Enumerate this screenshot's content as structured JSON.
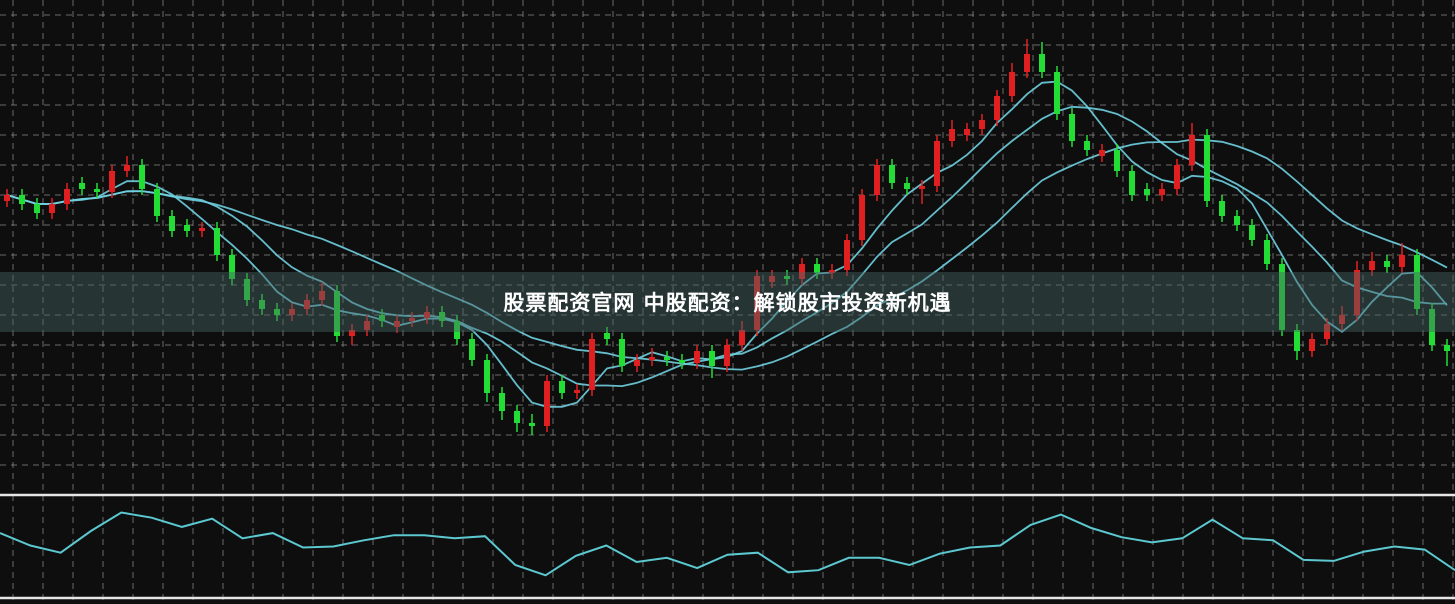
{
  "banner": {
    "title": "股票配资官网 中股配资：解锁股市投资新机遇"
  },
  "colors": {
    "background": "#0e0e0e",
    "up": "#e02020",
    "down": "#22dd33",
    "ma_line": "#6fd0e0",
    "grid": "#8a8a8a",
    "separator": "#e6e6e6",
    "oscillator": "#5cc8d0"
  },
  "chart_data": [
    {
      "type": "candlestick",
      "title": "",
      "xlabel": "",
      "ylabel": "",
      "grid": true,
      "ylim": [
        0,
        160
      ],
      "moving_averages": [
        5,
        10,
        20
      ],
      "ohlc": [
        [
          93,
          97,
          91,
          95
        ],
        [
          95,
          97,
          90,
          92
        ],
        [
          92,
          94,
          87,
          89
        ],
        [
          89,
          94,
          87,
          92
        ],
        [
          92,
          99,
          90,
          97
        ],
        [
          99,
          101,
          95,
          97
        ],
        [
          97,
          99,
          94,
          96
        ],
        [
          96,
          105,
          94,
          103
        ],
        [
          103,
          108,
          101,
          105
        ],
        [
          105,
          107,
          95,
          97
        ],
        [
          97,
          99,
          86,
          88
        ],
        [
          88,
          90,
          81,
          83
        ],
        [
          85,
          87,
          81,
          83
        ],
        [
          83,
          86,
          81,
          84
        ],
        [
          84,
          86,
          73,
          75
        ],
        [
          75,
          77,
          65,
          67
        ],
        [
          67,
          69,
          58,
          60
        ],
        [
          60,
          62,
          55,
          57
        ],
        [
          57,
          59,
          53,
          55
        ],
        [
          55,
          59,
          53,
          57
        ],
        [
          57,
          62,
          55,
          60
        ],
        [
          60,
          66,
          58,
          63
        ],
        [
          63,
          65,
          46,
          48
        ],
        [
          48,
          52,
          45,
          50
        ],
        [
          50,
          55,
          48,
          53
        ],
        [
          55,
          57,
          51,
          53
        ],
        [
          51,
          55,
          49,
          53
        ],
        [
          53,
          56,
          51,
          54
        ],
        [
          54,
          58,
          52,
          56
        ],
        [
          56,
          58,
          51,
          53
        ],
        [
          53,
          55,
          45,
          47
        ],
        [
          47,
          49,
          38,
          40
        ],
        [
          40,
          42,
          26,
          29
        ],
        [
          29,
          31,
          20,
          23
        ],
        [
          23,
          25,
          16,
          19
        ],
        [
          19,
          22,
          15,
          18
        ],
        [
          18,
          35,
          16,
          33
        ],
        [
          33,
          35,
          27,
          29
        ],
        [
          29,
          32,
          27,
          30
        ],
        [
          30,
          49,
          28,
          47
        ],
        [
          49,
          51,
          45,
          47
        ],
        [
          47,
          49,
          36,
          38
        ],
        [
          38,
          42,
          36,
          40
        ],
        [
          40,
          44,
          38,
          41
        ],
        [
          41,
          43,
          38,
          40
        ],
        [
          40,
          42,
          37,
          39
        ],
        [
          39,
          45,
          37,
          43
        ],
        [
          43,
          45,
          34,
          38
        ],
        [
          38,
          47,
          36,
          45
        ],
        [
          45,
          53,
          43,
          50
        ],
        [
          50,
          70,
          48,
          68
        ],
        [
          66,
          70,
          64,
          68
        ],
        [
          68,
          70,
          65,
          67
        ],
        [
          67,
          74,
          65,
          72
        ],
        [
          72,
          74,
          67,
          69
        ],
        [
          69,
          72,
          67,
          70
        ],
        [
          70,
          82,
          68,
          80
        ],
        [
          80,
          97,
          78,
          95
        ],
        [
          95,
          107,
          93,
          105
        ],
        [
          105,
          107,
          97,
          99
        ],
        [
          99,
          101,
          95,
          97
        ],
        [
          97,
          100,
          92,
          98
        ],
        [
          98,
          115,
          96,
          113
        ],
        [
          113,
          120,
          111,
          117
        ],
        [
          115,
          119,
          113,
          117
        ],
        [
          117,
          122,
          115,
          120
        ],
        [
          120,
          130,
          118,
          128
        ],
        [
          128,
          139,
          126,
          136
        ],
        [
          136,
          147,
          134,
          142
        ],
        [
          142,
          146,
          134,
          136
        ],
        [
          136,
          138,
          120,
          122
        ],
        [
          122,
          124,
          111,
          113
        ],
        [
          113,
          115,
          108,
          110
        ],
        [
          108,
          112,
          106,
          110
        ],
        [
          110,
          112,
          101,
          103
        ],
        [
          103,
          105,
          93,
          95
        ],
        [
          97,
          99,
          93,
          95
        ],
        [
          95,
          99,
          93,
          97
        ],
        [
          97,
          107,
          95,
          105
        ],
        [
          105,
          119,
          103,
          115
        ],
        [
          115,
          117,
          91,
          93
        ],
        [
          93,
          95,
          86,
          88
        ],
        [
          88,
          90,
          83,
          85
        ],
        [
          85,
          87,
          78,
          80
        ],
        [
          80,
          82,
          70,
          72
        ],
        [
          72,
          74,
          48,
          50
        ],
        [
          50,
          52,
          40,
          43
        ],
        [
          43,
          49,
          41,
          47
        ],
        [
          47,
          54,
          45,
          52
        ],
        [
          52,
          58,
          50,
          55
        ],
        [
          55,
          73,
          53,
          70
        ],
        [
          70,
          76,
          68,
          73
        ],
        [
          73,
          75,
          69,
          71
        ],
        [
          71,
          79,
          69,
          75
        ],
        [
          75,
          77,
          55,
          57
        ],
        [
          57,
          59,
          43,
          45
        ],
        [
          45,
          47,
          38,
          43
        ]
      ]
    },
    {
      "type": "line",
      "title": "",
      "xlabel": "",
      "ylabel": "",
      "ylim": [
        0,
        100
      ],
      "values": [
        63,
        51,
        44,
        65,
        83,
        78,
        69,
        77,
        58,
        63,
        49,
        50,
        56,
        61,
        61,
        58,
        60,
        32,
        22,
        41,
        51,
        35,
        39,
        29,
        42,
        44,
        25,
        27,
        39,
        39,
        32,
        43,
        49,
        51,
        71,
        81,
        68,
        59,
        54,
        58,
        76,
        58,
        56,
        37,
        36,
        45,
        50,
        47,
        27
      ]
    }
  ]
}
